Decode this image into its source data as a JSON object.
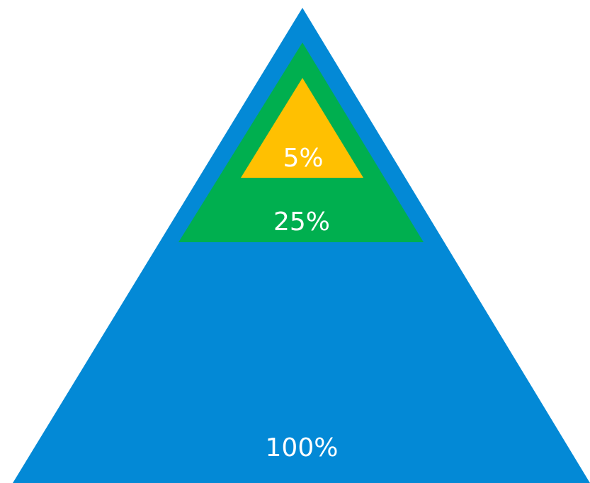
{
  "pyramid": {
    "tiers": [
      {
        "label": "100%",
        "color": "#0389D6"
      },
      {
        "label": "25%",
        "color": "#00AF4F"
      },
      {
        "label": "5%",
        "color": "#FFC001"
      }
    ]
  }
}
